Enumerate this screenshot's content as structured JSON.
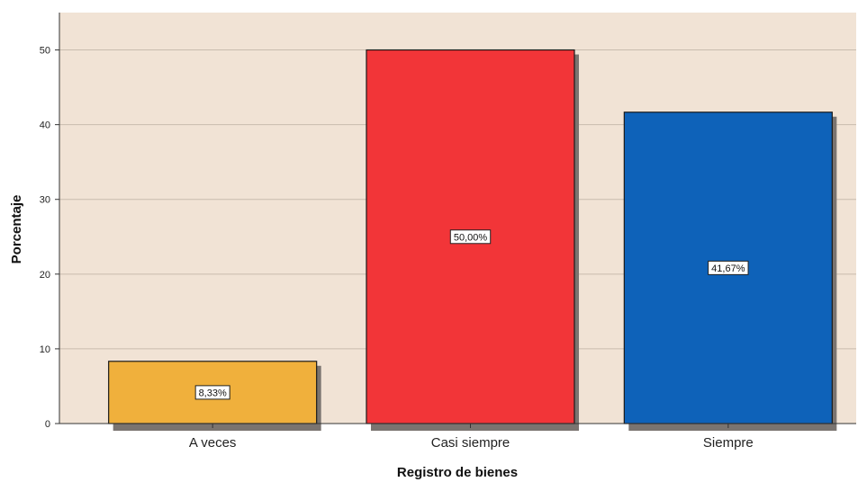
{
  "chart_data": {
    "type": "bar",
    "categories": [
      "A veces",
      "Casi siempre",
      "Siempre"
    ],
    "values": [
      8.33,
      50.0,
      41.67
    ],
    "data_labels": [
      "8,33%",
      "50,00%",
      "41,67%"
    ],
    "colors": [
      "#f0b03c",
      "#f23538",
      "#0e62b9"
    ],
    "xlabel": "Registro de bienes",
    "ylabel": "Porcentaje",
    "ylim": [
      0,
      55
    ],
    "yticks": [
      0,
      10,
      20,
      30,
      40,
      50
    ],
    "ytick_labels": [
      "0",
      "10",
      "20",
      "30",
      "40",
      "50"
    ],
    "grid": true,
    "background": "#f1e3d5"
  }
}
